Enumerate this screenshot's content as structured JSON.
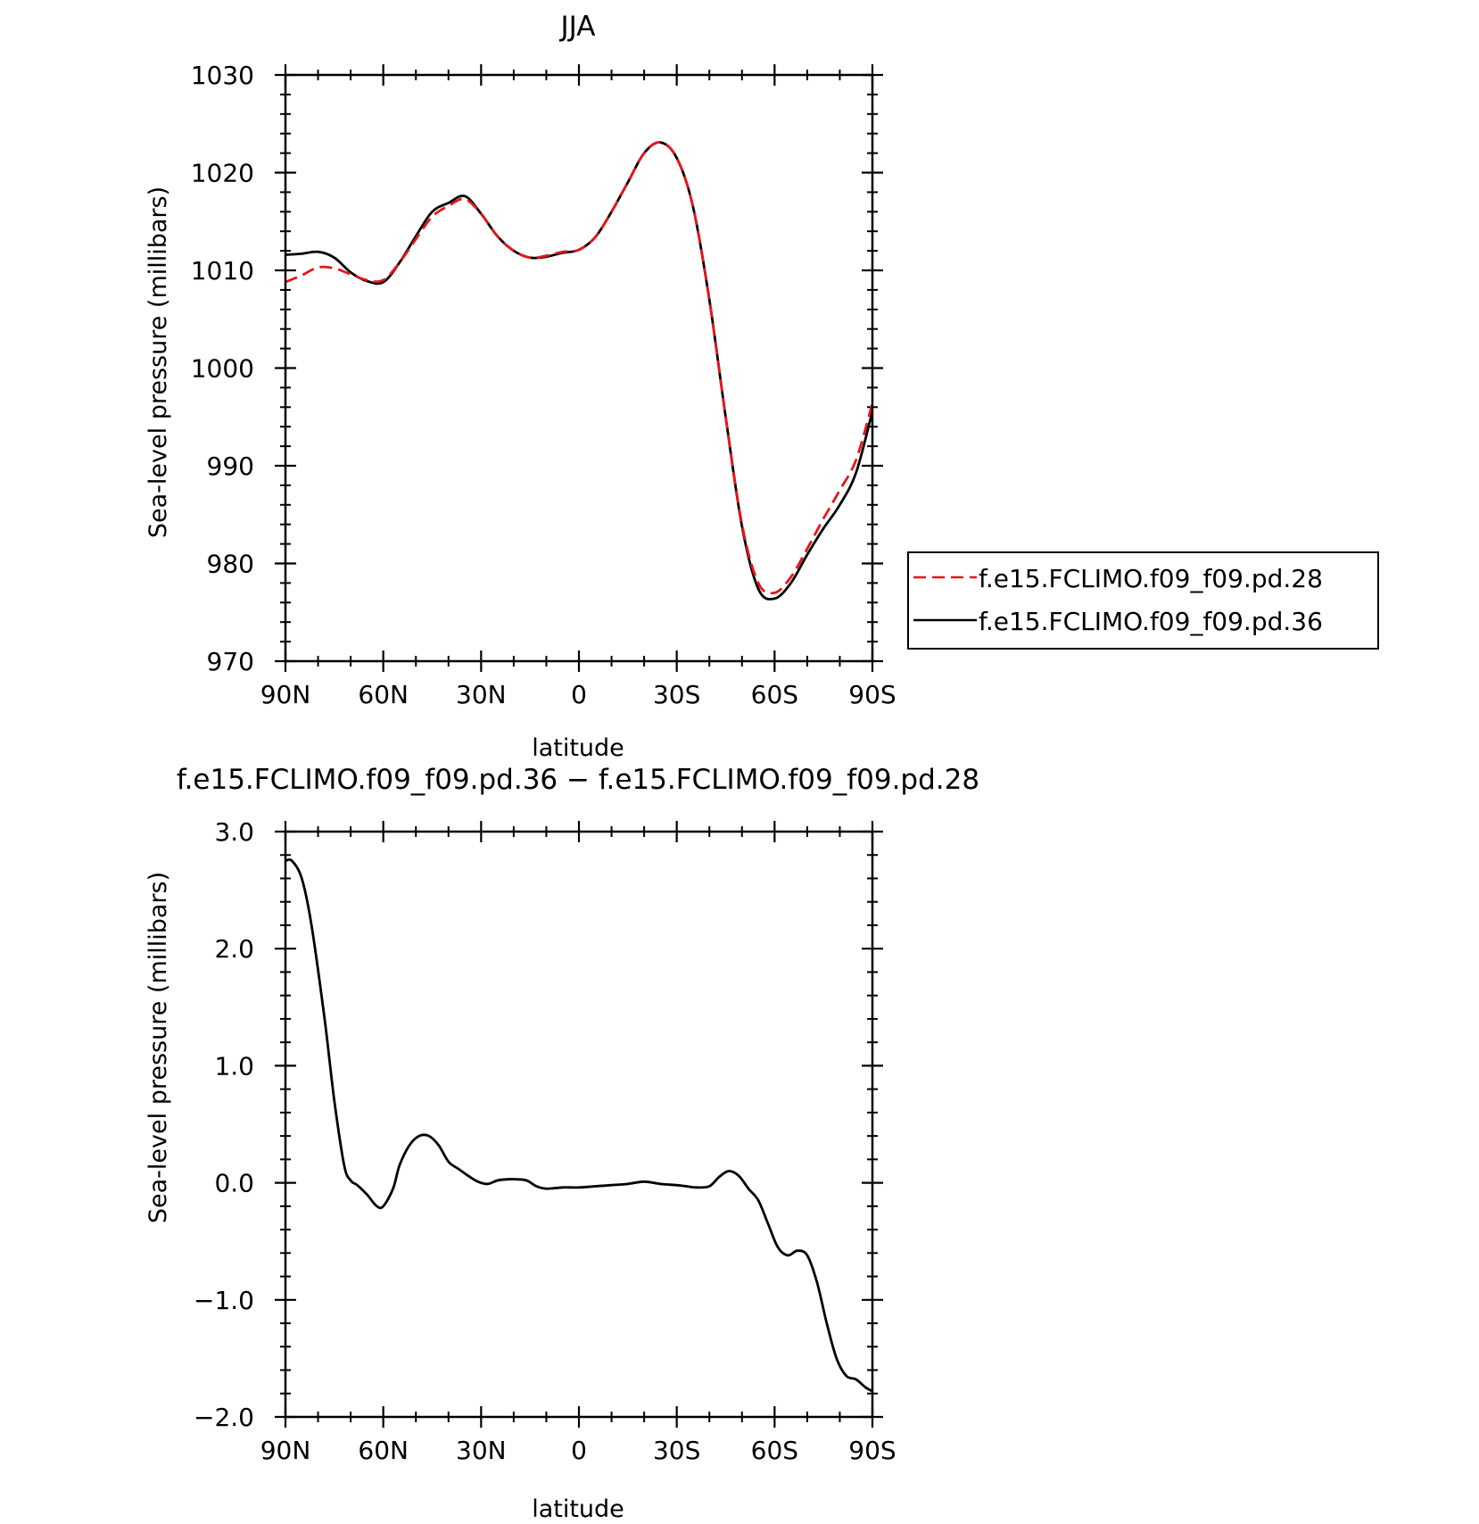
{
  "chart_data": [
    {
      "type": "line",
      "title": "JJA",
      "xlabel": "latitude",
      "ylabel": "Sea-level pressure (millibars)",
      "x_ticks": [
        90,
        60,
        30,
        0,
        -30,
        -60,
        -90
      ],
      "x_tick_labels": [
        "90N",
        "60N",
        "30N",
        "0",
        "30S",
        "60S",
        "90S"
      ],
      "xlim": [
        90,
        -90
      ],
      "ylim": [
        970,
        1030
      ],
      "y_ticks": [
        970,
        980,
        990,
        1000,
        1010,
        1020,
        1030
      ],
      "y_tick_labels": [
        "970",
        "980",
        "990",
        "1000",
        "1010",
        "1020",
        "1030"
      ],
      "grid": false,
      "legend_position": "right",
      "x": [
        90,
        85,
        80,
        75,
        70,
        65,
        60,
        55,
        50,
        45,
        40,
        35,
        30,
        25,
        20,
        15,
        10,
        5,
        0,
        -5,
        -10,
        -15,
        -20,
        -25,
        -30,
        -35,
        -40,
        -45,
        -50,
        -55,
        -60,
        -65,
        -70,
        -75,
        -80,
        -85,
        -90
      ],
      "series": [
        {
          "name": "f.e15.FCLIMO.f09_f09.pd.28",
          "color": "#e8141c",
          "dash": "dashed",
          "values": [
            1008.8,
            1009.5,
            1010.3,
            1010.2,
            1009.6,
            1009.0,
            1009.0,
            1010.8,
            1013.2,
            1015.5,
            1016.6,
            1017.3,
            1015.8,
            1013.5,
            1012.0,
            1011.3,
            1011.5,
            1011.9,
            1012.1,
            1013.4,
            1016.0,
            1019.0,
            1022.0,
            1023.1,
            1021.5,
            1016.5,
            1007.0,
            995.0,
            984.0,
            978.0,
            977.0,
            978.6,
            981.5,
            984.6,
            987.5,
            990.6,
            996.4
          ]
        },
        {
          "name": "f.e15.FCLIMO.f09_f09.pd.36",
          "color": "#000000",
          "dash": "solid",
          "values": [
            1011.6,
            1011.7,
            1011.9,
            1011.3,
            1009.8,
            1008.9,
            1008.8,
            1010.8,
            1013.5,
            1016.0,
            1016.9,
            1017.6,
            1015.8,
            1013.5,
            1012.0,
            1011.3,
            1011.4,
            1011.8,
            1012.1,
            1013.4,
            1016.0,
            1019.0,
            1022.0,
            1023.1,
            1021.5,
            1016.5,
            1007.0,
            995.0,
            983.8,
            977.4,
            976.4,
            978.0,
            980.9,
            983.6,
            986.0,
            989.3,
            995.6
          ]
        }
      ]
    },
    {
      "type": "line",
      "title": "f.e15.FCLIMO.f09_f09.pd.36 − f.e15.FCLIMO.f09_f09.pd.28",
      "xlabel": "latitude",
      "ylabel": "Sea-level pressure (millibars)",
      "x_ticks": [
        90,
        60,
        30,
        0,
        -30,
        -60,
        -90
      ],
      "x_tick_labels": [
        "90N",
        "60N",
        "30N",
        "0",
        "30S",
        "60S",
        "90S"
      ],
      "xlim": [
        90,
        -90
      ],
      "ylim": [
        -2.0,
        3.0
      ],
      "y_ticks": [
        -2.0,
        -1.0,
        0.0,
        1.0,
        2.0,
        3.0
      ],
      "y_tick_labels": [
        "−2.0",
        "−1.0",
        "0.0",
        "1.0",
        "2.0",
        "3.0"
      ],
      "grid": false,
      "x": [
        90,
        88,
        85,
        82,
        78,
        75,
        72,
        70,
        68,
        65,
        62,
        60,
        57,
        55,
        52,
        49,
        46,
        43,
        40,
        37,
        34,
        31,
        28,
        25,
        22,
        19,
        16,
        13,
        10,
        5,
        0,
        -5,
        -10,
        -15,
        -20,
        -25,
        -30,
        -33,
        -36,
        -40,
        -43,
        -46,
        -49,
        -52,
        -55,
        -58,
        -61,
        -64,
        -67,
        -70,
        -73,
        -76,
        -79,
        -82,
        -85,
        -88,
        -90
      ],
      "series": [
        {
          "name": "",
          "color": "#000000",
          "dash": "solid",
          "values": [
            2.75,
            2.75,
            2.6,
            2.2,
            1.4,
            0.7,
            0.15,
            0.02,
            -0.02,
            -0.1,
            -0.2,
            -0.2,
            -0.05,
            0.15,
            0.32,
            0.4,
            0.4,
            0.32,
            0.18,
            0.12,
            0.06,
            0.01,
            -0.01,
            0.02,
            0.03,
            0.03,
            0.02,
            -0.03,
            -0.05,
            -0.04,
            -0.04,
            -0.03,
            -0.02,
            -0.01,
            0.01,
            -0.01,
            -0.02,
            -0.03,
            -0.04,
            -0.03,
            0.05,
            0.1,
            0.06,
            -0.05,
            -0.15,
            -0.35,
            -0.55,
            -0.62,
            -0.58,
            -0.62,
            -0.85,
            -1.2,
            -1.5,
            -1.65,
            -1.68,
            -1.75,
            -1.78
          ]
        }
      ]
    }
  ]
}
